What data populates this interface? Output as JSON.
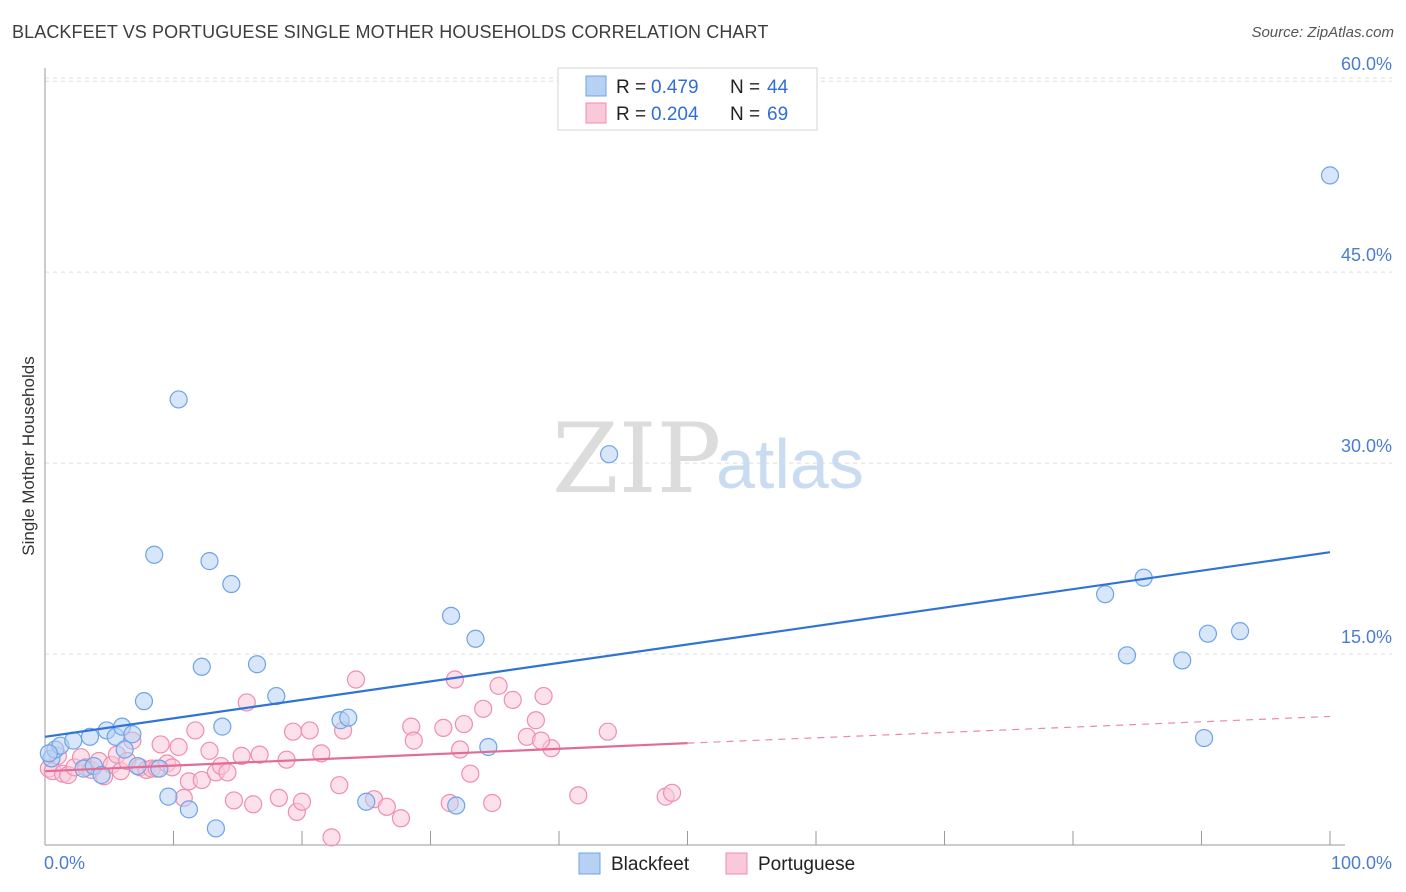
{
  "header": {
    "title": "BLACKFEET VS PORTUGUESE SINGLE MOTHER HOUSEHOLDS CORRELATION CHART",
    "source": "Source: ZipAtlas.com"
  },
  "watermark": {
    "zip": "ZIP",
    "atlas": "atlas"
  },
  "legend": {
    "rows": [
      {
        "r_label": "R = ",
        "r_value": "0.479",
        "n_label": "N = ",
        "n_value": "44"
      },
      {
        "r_label": "R = ",
        "r_value": "0.204",
        "n_label": "N = ",
        "n_value": "69"
      }
    ]
  },
  "chart_data": {
    "type": "scatter",
    "ylabel": "Single Mother Households",
    "xlim": [
      0,
      100
    ],
    "ylim": [
      0,
      60
    ],
    "y_ticks": [
      15,
      30,
      45,
      60
    ],
    "y_tick_labels": [
      "15.0%",
      "30.0%",
      "45.0%",
      "60.0%"
    ],
    "x_tick_labels": [
      "0.0%",
      "100.0%"
    ],
    "series": [
      {
        "name": "Blackfeet",
        "color": "#6fa3e8",
        "fill": "#b7d1f3",
        "line_color": "#2f73d6",
        "trend": {
          "x0": 0,
          "y0": 8.5,
          "x1": 100,
          "y1": 23.0
        },
        "points": [
          [
            0.5,
            6.8
          ],
          [
            0.8,
            7.5
          ],
          [
            1.2,
            7.8
          ],
          [
            2.2,
            8.2
          ],
          [
            3.0,
            6.0
          ],
          [
            3.5,
            8.5
          ],
          [
            3.8,
            6.2
          ],
          [
            4.4,
            5.5
          ],
          [
            4.8,
            9.0
          ],
          [
            5.5,
            8.5
          ],
          [
            6.0,
            9.3
          ],
          [
            6.2,
            7.5
          ],
          [
            6.8,
            8.7
          ],
          [
            7.2,
            6.2
          ],
          [
            7.7,
            11.3
          ],
          [
            8.5,
            22.8
          ],
          [
            8.9,
            6.0
          ],
          [
            9.6,
            3.8
          ],
          [
            10.4,
            35.0
          ],
          [
            11.2,
            2.8
          ],
          [
            12.2,
            14.0
          ],
          [
            12.8,
            22.3
          ],
          [
            13.3,
            1.3
          ],
          [
            13.8,
            9.3
          ],
          [
            14.5,
            20.5
          ],
          [
            16.5,
            14.2
          ],
          [
            18.0,
            11.7
          ],
          [
            23.0,
            9.8
          ],
          [
            23.6,
            10.0
          ],
          [
            25.0,
            3.4
          ],
          [
            31.6,
            18.0
          ],
          [
            32.0,
            3.1
          ],
          [
            33.5,
            16.2
          ],
          [
            34.5,
            7.7
          ],
          [
            43.9,
            30.7
          ],
          [
            82.5,
            19.7
          ],
          [
            84.2,
            14.9
          ],
          [
            85.5,
            21.0
          ],
          [
            88.5,
            14.5
          ],
          [
            90.2,
            8.4
          ],
          [
            90.5,
            16.6
          ],
          [
            93.0,
            16.8
          ],
          [
            100.0,
            52.6
          ],
          [
            0.3,
            7.2
          ]
        ]
      },
      {
        "name": "Portuguese",
        "color": "#f08db0",
        "fill": "#f9c8d9",
        "line_color": "#e36b98",
        "trend": {
          "x0": 0,
          "y0": 5.8,
          "x1": 50,
          "y1": 8.0
        },
        "trend_dashed": {
          "x0": 50,
          "y0": 8.0,
          "x1": 100,
          "y1": 10.1
        },
        "points": [
          [
            0.3,
            6.0
          ],
          [
            0.6,
            5.8
          ],
          [
            1.0,
            7.0
          ],
          [
            1.4,
            5.6
          ],
          [
            1.8,
            5.5
          ],
          [
            2.3,
            6.1
          ],
          [
            2.8,
            6.9
          ],
          [
            3.2,
            6.1
          ],
          [
            3.6,
            5.9
          ],
          [
            4.2,
            6.6
          ],
          [
            4.6,
            5.4
          ],
          [
            5.2,
            6.3
          ],
          [
            5.6,
            7.1
          ],
          [
            5.9,
            5.8
          ],
          [
            6.4,
            6.6
          ],
          [
            6.8,
            8.2
          ],
          [
            7.4,
            6.1
          ],
          [
            7.9,
            5.9
          ],
          [
            8.3,
            6.0
          ],
          [
            8.7,
            6.0
          ],
          [
            9.0,
            7.9
          ],
          [
            9.5,
            6.4
          ],
          [
            9.9,
            6.1
          ],
          [
            10.4,
            7.7
          ],
          [
            10.8,
            3.7
          ],
          [
            11.2,
            5.0
          ],
          [
            11.7,
            9.0
          ],
          [
            12.2,
            5.1
          ],
          [
            12.8,
            7.4
          ],
          [
            13.3,
            5.7
          ],
          [
            13.7,
            6.2
          ],
          [
            14.2,
            5.7
          ],
          [
            14.7,
            3.5
          ],
          [
            15.3,
            7.0
          ],
          [
            15.7,
            11.2
          ],
          [
            16.2,
            3.2
          ],
          [
            16.7,
            7.1
          ],
          [
            18.2,
            3.7
          ],
          [
            18.8,
            6.7
          ],
          [
            19.3,
            8.9
          ],
          [
            19.6,
            2.6
          ],
          [
            20.0,
            3.4
          ],
          [
            20.6,
            9.0
          ],
          [
            21.5,
            7.2
          ],
          [
            22.3,
            0.6
          ],
          [
            22.9,
            4.7
          ],
          [
            23.2,
            9.0
          ],
          [
            24.2,
            13.0
          ],
          [
            25.6,
            3.6
          ],
          [
            26.6,
            3.0
          ],
          [
            27.7,
            2.1
          ],
          [
            28.5,
            9.3
          ],
          [
            28.7,
            8.2
          ],
          [
            31.0,
            9.2
          ],
          [
            31.5,
            3.3
          ],
          [
            31.9,
            13.0
          ],
          [
            32.3,
            7.5
          ],
          [
            32.6,
            9.5
          ],
          [
            33.1,
            5.6
          ],
          [
            34.1,
            10.7
          ],
          [
            34.8,
            3.3
          ],
          [
            35.3,
            12.5
          ],
          [
            36.4,
            11.4
          ],
          [
            37.5,
            8.5
          ],
          [
            38.2,
            9.8
          ],
          [
            38.8,
            11.7
          ],
          [
            39.4,
            7.6
          ],
          [
            41.5,
            3.9
          ],
          [
            43.8,
            8.9
          ]
        ]
      }
    ],
    "extra_portuguese_points": [
      [
        48.3,
        3.8
      ],
      [
        48.8,
        4.1
      ],
      [
        38.6,
        8.2
      ]
    ]
  }
}
